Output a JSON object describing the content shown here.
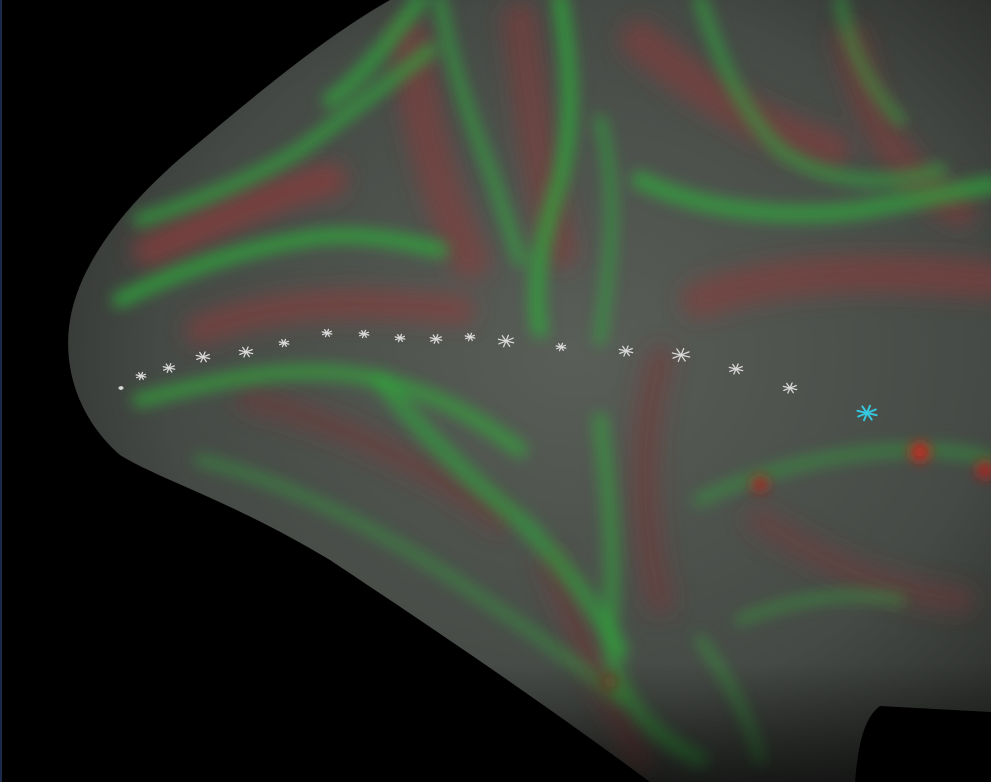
{
  "scene": {
    "background_color": "#000000",
    "surface_base_color": "#4a4f4a",
    "sulcus_color": "#2fa83a",
    "gyrus_color": "#8a3a3a",
    "marker_color": "#d8d8d8",
    "active_marker_color": "#35c8e0",
    "hotspot_color": "#e01818",
    "edge_line_color": "#1b2a4a",
    "marker_icon": "asterisk-icon",
    "marker_count": 19,
    "active_marker_index": 18
  }
}
